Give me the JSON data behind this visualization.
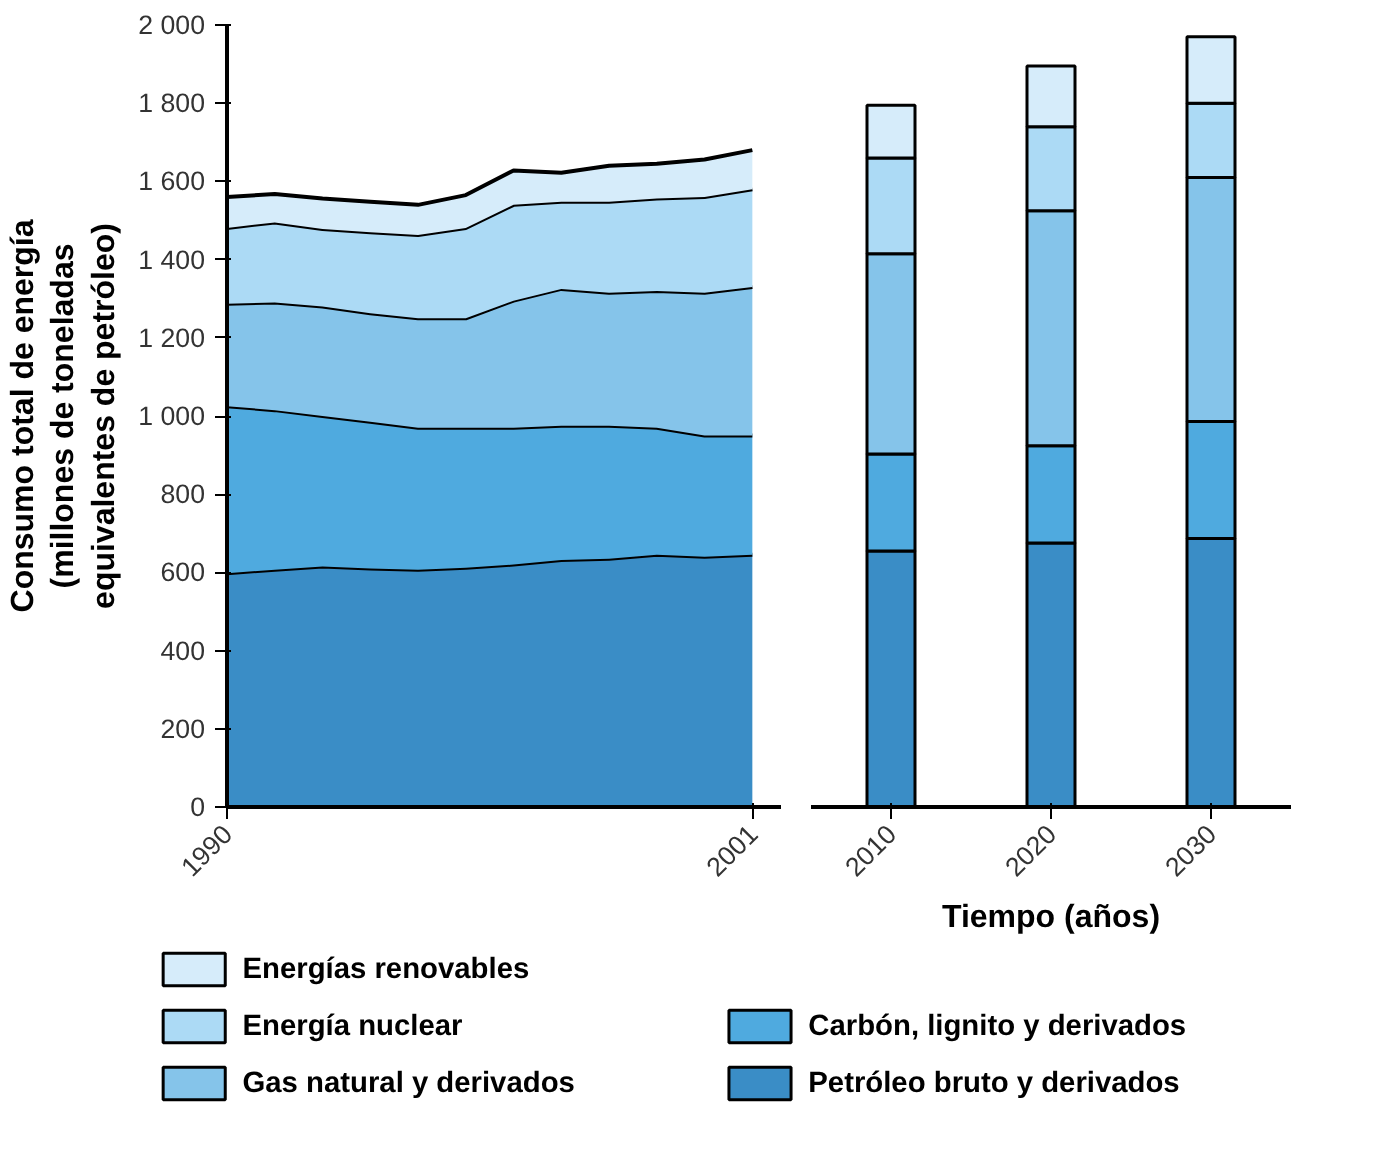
{
  "chart_data": [
    {
      "type": "area",
      "stacked": true,
      "ylabel": "Consumo total de energía\n(millones de toneladas\nequivalentes de petróleo)",
      "xlim": [
        1990,
        2001.6
      ],
      "xticks": [
        1990,
        2001
      ],
      "ylim": [
        0,
        2000
      ],
      "yticks": [
        0,
        200,
        400,
        600,
        800,
        {
          "value": 1000,
          "label": "1 000"
        },
        {
          "value": 1200,
          "label": "1 200"
        },
        {
          "value": 1400,
          "label": "1 400"
        },
        {
          "value": 1600,
          "label": "1 600"
        },
        {
          "value": 1800,
          "label": "1 800"
        },
        {
          "value": 2000,
          "label": "2 000"
        }
      ],
      "legend": "bottom",
      "series": [
        {
          "name": "Petróleo bruto y derivados",
          "color": "#3a8dc6",
          "x": [
            1990,
            1991,
            1992,
            1993,
            1994,
            1995,
            1996,
            1997,
            1998,
            1999,
            2000,
            2001
          ],
          "values": [
            598,
            607,
            615,
            610,
            607,
            612,
            620,
            632,
            635,
            645,
            640,
            645
          ]
        },
        {
          "name": "Carbón, lignito y derivados",
          "color": "#4faadf",
          "x": [
            1990,
            1991,
            1992,
            1993,
            1994,
            1995,
            1996,
            1997,
            1998,
            1999,
            2000,
            2001
          ],
          "values": [
            427,
            408,
            385,
            375,
            363,
            358,
            350,
            343,
            340,
            325,
            310,
            305
          ]
        },
        {
          "name": "Gas natural y derivados",
          "color": "#85c4ea",
          "x": [
            1990,
            1991,
            1992,
            1993,
            1994,
            1995,
            1996,
            1997,
            1998,
            1999,
            2000,
            2001
          ],
          "values": [
            262,
            275,
            280,
            278,
            280,
            280,
            325,
            350,
            340,
            350,
            365,
            380
          ]
        },
        {
          "name": "Energía nuclear",
          "color": "#acdaf5",
          "x": [
            1990,
            1991,
            1992,
            1993,
            1994,
            1995,
            1996,
            1997,
            1998,
            1999,
            2000,
            2001
          ],
          "values": [
            194,
            205,
            198,
            207,
            213,
            231,
            245,
            223,
            233,
            236,
            245,
            250
          ]
        },
        {
          "name": "Energías renovables",
          "color": "#d6ecfa",
          "x": [
            1990,
            1991,
            1992,
            1993,
            1994,
            1995,
            1996,
            1997,
            1998,
            1999,
            2000,
            2001
          ],
          "values": [
            79,
            73,
            78,
            78,
            77,
            84,
            88,
            74,
            92,
            89,
            96,
            100
          ]
        }
      ]
    },
    {
      "type": "bar",
      "stacked": true,
      "xlabel": "Tiempo (años)",
      "categories": [
        "2010",
        "2020",
        "2030"
      ],
      "ylim": [
        0,
        2000
      ],
      "tick_labels": "x",
      "series": [
        {
          "color": "#3a8dc6",
          "values": [
            655,
            675,
            687
          ]
        },
        {
          "color": "#4faadf",
          "values": [
            248,
            249,
            299
          ]
        },
        {
          "color": "#85c4ea",
          "values": [
            512,
            601,
            624
          ]
        },
        {
          "color": "#acdaf5",
          "values": [
            245,
            215,
            190
          ]
        },
        {
          "color": "#d6ecfa",
          "values": [
            135,
            155,
            170
          ]
        }
      ]
    }
  ]
}
